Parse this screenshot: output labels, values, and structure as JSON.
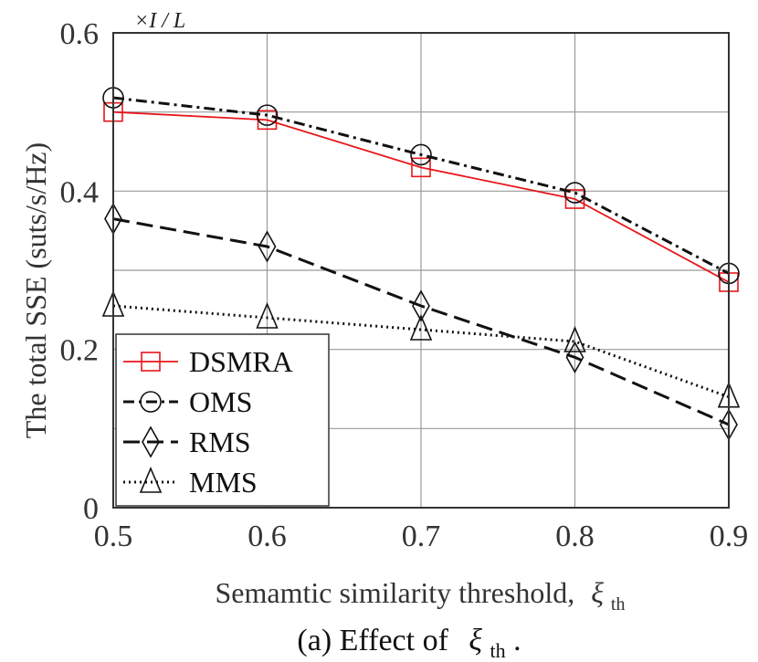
{
  "chart_data": {
    "type": "line",
    "x": [
      0.5,
      0.6,
      0.7,
      0.8,
      0.9
    ],
    "xlim": [
      0.5,
      0.9
    ],
    "ylim": [
      0,
      0.6
    ],
    "xticks": [
      "0.5",
      "0.6",
      "0.7",
      "0.8",
      "0.9"
    ],
    "yticks": [
      "0",
      "0.2",
      "0.4",
      "0.6"
    ],
    "xlabel": "Semamtic similarity threshold,",
    "xlabel_symbol": "ξ",
    "xlabel_sub": "th",
    "ylabel": "The total SSE (suts/s/Hz)",
    "y_multiplier": "×I / L",
    "caption": "(a) Effect of",
    "caption_symbol": "ξ",
    "caption_sub": "th",
    "caption_end": ".",
    "grid": true,
    "legend_position": "lower-left",
    "series": [
      {
        "name": "DSMRA",
        "values": [
          0.5,
          0.49,
          0.43,
          0.39,
          0.285
        ],
        "color": "#e8161b",
        "dash": "",
        "marker": "square"
      },
      {
        "name": "OMS",
        "values": [
          0.518,
          0.496,
          0.446,
          0.398,
          0.296
        ],
        "color": "#111111",
        "dash": "12,5,3,5",
        "marker": "circle"
      },
      {
        "name": "RMS",
        "values": [
          0.365,
          0.33,
          0.255,
          0.19,
          0.105
        ],
        "color": "#111111",
        "dash": "18,8",
        "marker": "diamond"
      },
      {
        "name": "MMS",
        "values": [
          0.255,
          0.24,
          0.225,
          0.21,
          0.14
        ],
        "color": "#111111",
        "dash": "2,4",
        "marker": "triangle"
      }
    ]
  }
}
